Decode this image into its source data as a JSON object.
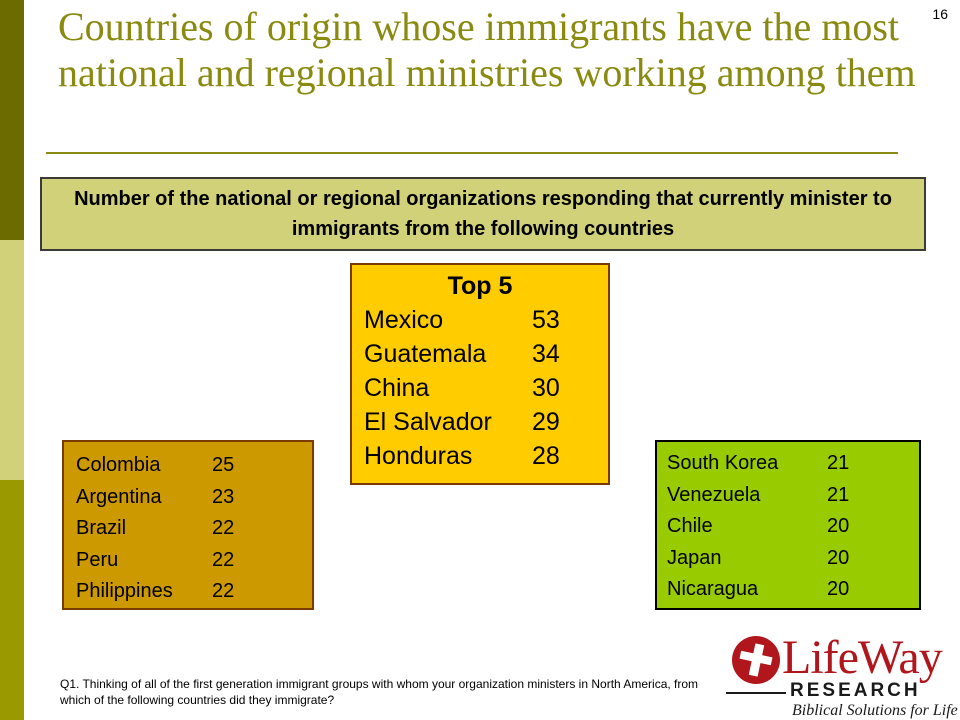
{
  "slide_number": "16",
  "title": "Countries of origin whose immigrants have the most national and regional ministries working among them",
  "subtitle": "Number of the national or regional organizations responding that currently minister to immigrants from the following countries",
  "top5": {
    "heading": "Top 5",
    "rows": [
      {
        "country": "Mexico",
        "count": "53"
      },
      {
        "country": "Guatemala",
        "count": "34"
      },
      {
        "country": "China",
        "count": "30"
      },
      {
        "country": "El Salvador",
        "count": "29"
      },
      {
        "country": "Honduras",
        "count": "28"
      }
    ]
  },
  "left_group": {
    "rows": [
      {
        "country": "Colombia",
        "count": "25"
      },
      {
        "country": "Argentina",
        "count": "23"
      },
      {
        "country": "Brazil",
        "count": "22"
      },
      {
        "country": "Peru",
        "count": "22"
      },
      {
        "country": "Philippines",
        "count": "22"
      }
    ]
  },
  "right_group": {
    "rows": [
      {
        "country": "South Korea",
        "count": "21"
      },
      {
        "country": "Venezuela",
        "count": "21"
      },
      {
        "country": "Chile",
        "count": "20"
      },
      {
        "country": "Japan",
        "count": "20"
      },
      {
        "country": "Nicaragua",
        "count": "20"
      }
    ]
  },
  "footnote": "Q1. Thinking of all of the first generation immigrant groups with whom your organization ministers in North America, from which of the following countries did they immigrate?",
  "logo": {
    "wordmark": "LifeWay",
    "research": "RESEARCH",
    "tagline": "Biblical Solutions for Life"
  },
  "colors": {
    "title": "#8a8a10",
    "subtitle_bg": "#d1d17a",
    "top5_bg": "#ffcc00",
    "left_bg": "#cc9900",
    "right_bg": "#99cc00",
    "brand_red": "#b0161c"
  }
}
